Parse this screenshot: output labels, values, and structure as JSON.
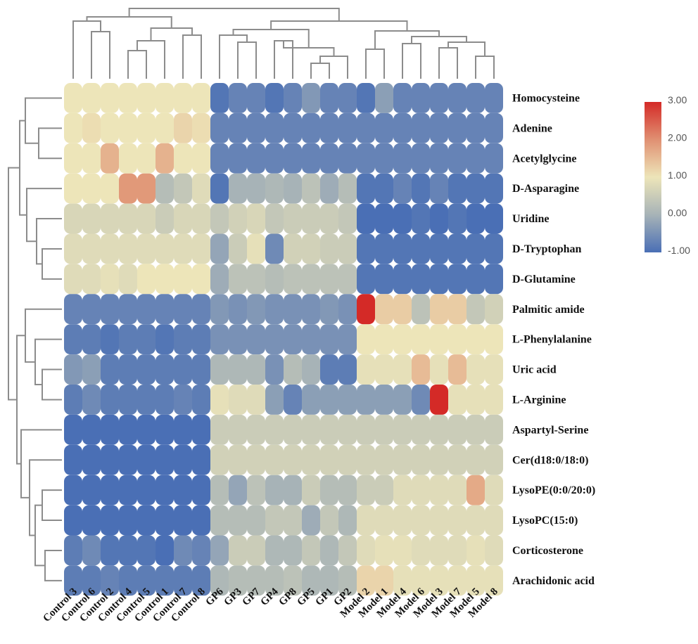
{
  "chart_data": {
    "type": "heatmap",
    "title": "",
    "xlabel": "",
    "ylabel": "",
    "columns": [
      "Control 3",
      "Control 6",
      "Control 2",
      "Control 4",
      "Control 5",
      "Control 1",
      "Control 7",
      "Control 8",
      "GP6",
      "GP3",
      "GP7",
      "GP4",
      "GP8",
      "GP5",
      "GP1",
      "GP2",
      "Model 2",
      "Model 1",
      "Model 4",
      "Model 6",
      "Model 3",
      "Model 7",
      "Model 5",
      "Model 8"
    ],
    "rows": [
      "Homocysteine",
      "Adenine",
      "Acetylglycine",
      "D-Asparagine",
      "Uridine",
      "D-Tryptophan",
      "D-Glutamine",
      "Palmitic amide",
      "L-Phenylalanine",
      "Uric acid",
      "L-Arginine",
      "Aspartyl-Serine",
      "Cer(d18:0/18:0)",
      "LysoPE(0:0/20:0)",
      "LysoPC(15:0)",
      "Corticosterone",
      "Arachidonic acid"
    ],
    "values": [
      [
        1.0,
        1.0,
        1.0,
        1.0,
        1.0,
        1.0,
        1.0,
        1.0,
        -0.9,
        -0.7,
        -0.7,
        -0.9,
        -0.7,
        -0.4,
        -0.7,
        -0.7,
        -0.9,
        -0.3,
        -0.7,
        -0.7,
        -0.7,
        -0.7,
        -0.7,
        -0.7
      ],
      [
        1.0,
        1.1,
        1.0,
        1.0,
        1.0,
        1.0,
        1.2,
        1.1,
        -0.7,
        -0.7,
        -0.7,
        -0.7,
        -0.7,
        -0.7,
        -0.7,
        -0.7,
        -0.7,
        -0.7,
        -0.7,
        -0.7,
        -0.7,
        -0.7,
        -0.7,
        -0.7
      ],
      [
        1.0,
        1.0,
        1.6,
        1.0,
        1.0,
        1.6,
        1.0,
        1.0,
        -0.7,
        -0.7,
        -0.7,
        -0.7,
        -0.7,
        -0.7,
        -0.7,
        -0.7,
        -0.7,
        -0.7,
        -0.7,
        -0.7,
        -0.7,
        -0.7,
        -0.7,
        -0.7
      ],
      [
        1.0,
        1.0,
        1.0,
        1.9,
        1.9,
        0.2,
        0.4,
        0.8,
        -0.9,
        0.0,
        0.0,
        0.1,
        0.0,
        0.3,
        -0.1,
        0.2,
        -0.9,
        -0.9,
        -0.7,
        -0.9,
        -0.7,
        -0.9,
        -0.9,
        -0.9
      ],
      [
        0.7,
        0.7,
        0.7,
        0.7,
        0.7,
        0.5,
        0.7,
        0.7,
        0.4,
        0.6,
        0.7,
        0.4,
        0.5,
        0.5,
        0.5,
        0.4,
        -1.0,
        -1.0,
        -1.0,
        -0.9,
        -1.0,
        -0.9,
        -1.0,
        -1.0
      ],
      [
        0.8,
        0.8,
        0.8,
        0.8,
        0.8,
        0.8,
        0.8,
        0.8,
        -0.2,
        0.5,
        0.9,
        -0.6,
        0.6,
        0.6,
        0.5,
        0.5,
        -0.9,
        -0.9,
        -0.9,
        -0.9,
        -0.9,
        -0.9,
        -0.9,
        -0.9
      ],
      [
        0.8,
        0.8,
        0.9,
        0.8,
        1.0,
        1.0,
        1.0,
        1.0,
        -0.1,
        0.3,
        0.3,
        0.2,
        0.3,
        0.3,
        0.3,
        0.3,
        -0.9,
        -0.9,
        -0.9,
        -0.9,
        -0.9,
        -0.9,
        -0.9,
        -0.9
      ],
      [
        -0.7,
        -0.7,
        -0.7,
        -0.7,
        -0.7,
        -0.7,
        -0.7,
        -0.7,
        -0.4,
        -0.5,
        -0.4,
        -0.5,
        -0.5,
        -0.5,
        -0.4,
        -0.5,
        3.0,
        1.3,
        1.3,
        0.3,
        1.3,
        1.3,
        0.4,
        0.6
      ],
      [
        -0.8,
        -0.8,
        -0.9,
        -0.8,
        -0.8,
        -0.9,
        -0.8,
        -0.8,
        -0.5,
        -0.5,
        -0.5,
        -0.5,
        -0.5,
        -0.5,
        -0.5,
        -0.5,
        1.0,
        1.0,
        1.0,
        1.0,
        1.0,
        1.0,
        1.0,
        1.0
      ],
      [
        -0.4,
        -0.3,
        -0.8,
        -0.8,
        -0.8,
        -0.8,
        -0.8,
        -0.8,
        0.1,
        0.1,
        0.1,
        -0.5,
        0.2,
        0.0,
        -0.8,
        -0.8,
        0.9,
        0.9,
        0.9,
        1.5,
        0.9,
        1.5,
        0.9,
        0.9
      ],
      [
        -0.8,
        -0.6,
        -0.8,
        -0.8,
        -0.8,
        -0.8,
        -0.7,
        -0.8,
        0.9,
        0.8,
        0.8,
        -0.3,
        -0.7,
        -0.3,
        -0.3,
        -0.3,
        -0.3,
        -0.3,
        -0.3,
        -0.6,
        3.0,
        0.9,
        0.9,
        0.9
      ],
      [
        -1.0,
        -1.0,
        -1.0,
        -1.0,
        -1.0,
        -1.0,
        -1.0,
        -1.0,
        0.5,
        0.5,
        0.5,
        0.5,
        0.5,
        0.5,
        0.5,
        0.5,
        0.5,
        0.5,
        0.5,
        0.5,
        0.5,
        0.5,
        0.5,
        0.5
      ],
      [
        -1.0,
        -1.0,
        -1.0,
        -1.0,
        -1.0,
        -1.0,
        -1.0,
        -1.0,
        0.6,
        0.6,
        0.6,
        0.6,
        0.6,
        0.6,
        0.6,
        0.6,
        0.6,
        0.6,
        0.6,
        0.6,
        0.6,
        0.6,
        0.6,
        0.6
      ],
      [
        -1.0,
        -1.0,
        -1.0,
        -1.0,
        -1.0,
        -1.0,
        -1.0,
        -1.0,
        0.2,
        -0.2,
        0.3,
        0.0,
        0.0,
        0.5,
        0.2,
        0.2,
        0.5,
        0.5,
        0.8,
        0.8,
        0.8,
        0.8,
        1.7,
        0.8
      ],
      [
        -1.0,
        -1.0,
        -1.0,
        -1.0,
        -1.0,
        -1.0,
        -1.0,
        -1.0,
        0.2,
        0.2,
        0.2,
        0.4,
        0.4,
        -0.1,
        0.4,
        0.1,
        0.8,
        0.8,
        0.8,
        0.8,
        0.8,
        0.8,
        0.8,
        0.8
      ],
      [
        -0.8,
        -0.6,
        -0.9,
        -0.9,
        -0.9,
        -1.0,
        -0.6,
        -0.7,
        -0.2,
        0.5,
        0.5,
        0.1,
        0.1,
        0.4,
        0.1,
        0.4,
        0.8,
        0.9,
        0.9,
        0.8,
        0.8,
        0.8,
        0.9,
        0.8
      ],
      [
        -0.8,
        -0.8,
        -0.7,
        -0.8,
        -0.8,
        -0.8,
        -0.8,
        -0.8,
        0.1,
        0.2,
        0.2,
        0.2,
        0.3,
        0.1,
        0.1,
        0.2,
        1.2,
        1.2,
        0.9,
        0.9,
        0.9,
        0.9,
        0.9,
        0.9
      ]
    ],
    "scale": {
      "min": -1.0,
      "max": 3.0,
      "stops": [
        {
          "value": -1.0,
          "color": "#4a6fb5"
        },
        {
          "value": 0.0,
          "color": "#a7b3b7"
        },
        {
          "value": 1.0,
          "color": "#ede5b9"
        },
        {
          "value": 2.0,
          "color": "#e09072"
        },
        {
          "value": 3.0,
          "color": "#d42a27"
        }
      ],
      "tick_labels": [
        "3.00",
        "2.00",
        "1.00",
        "0.00",
        "-1.00"
      ]
    },
    "legend_position": "top-right",
    "dendrograms": [
      "top",
      "left"
    ],
    "grid": false
  }
}
